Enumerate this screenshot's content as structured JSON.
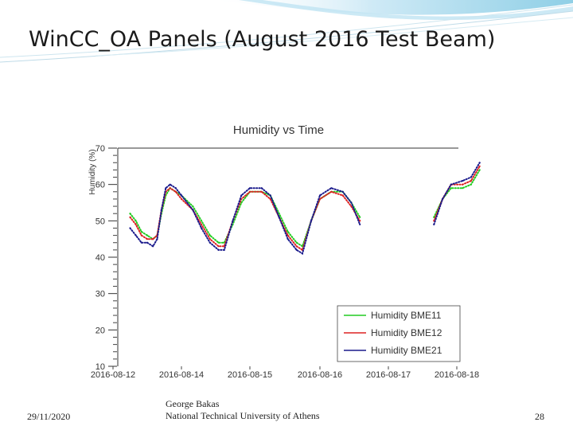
{
  "slide": {
    "title": "WinCC_OA Panels (August 2016 Test Beam)",
    "date": "29/11/2020",
    "author": "George Bakas",
    "institution": "National Technical University of Athens",
    "page_number": "28"
  },
  "chart_data": {
    "type": "line",
    "title": "Humidity vs Time",
    "xlabel": "",
    "ylabel": "Humidity (%)",
    "xticks": [
      "2016-08-12",
      "2016-08-14",
      "2016-08-15",
      "2016-08-16",
      "2016-08-17",
      "2016-08-18"
    ],
    "yticks": [
      10,
      20,
      30,
      40,
      50,
      60,
      70
    ],
    "ylim": [
      10,
      70
    ],
    "grid": false,
    "legend_position": "bottom-right",
    "series": [
      {
        "name": "Humidity BME11",
        "color": "#22cc22",
        "segments": [
          [
            [
              "2016-08-12 12:00",
              52
            ],
            [
              "2016-08-12 16:00",
              50
            ],
            [
              "2016-08-12 20:00",
              47
            ],
            [
              "2016-08-13 00:00",
              46
            ],
            [
              "2016-08-13 04:00",
              45
            ],
            [
              "2016-08-13 07:00",
              46
            ],
            [
              "2016-08-13 10:00",
              52
            ],
            [
              "2016-08-13 13:00",
              57
            ],
            [
              "2016-08-13 16:00",
              59
            ],
            [
              "2016-08-13 20:00",
              58
            ],
            [
              "2016-08-14 00:00",
              57
            ],
            [
              "2016-08-14 04:00",
              54
            ],
            [
              "2016-08-14 07:00",
              50
            ],
            [
              "2016-08-14 10:00",
              46
            ],
            [
              "2016-08-14 13:00",
              44
            ],
            [
              "2016-08-14 15:00",
              44
            ],
            [
              "2016-08-14 18:00",
              49
            ],
            [
              "2016-08-14 21:00",
              55
            ],
            [
              "2016-08-15 00:00",
              58
            ],
            [
              "2016-08-15 04:00",
              58
            ],
            [
              "2016-08-15 07:00",
              57
            ],
            [
              "2016-08-15 10:00",
              52
            ],
            [
              "2016-08-15 13:00",
              47
            ],
            [
              "2016-08-15 16:00",
              44
            ],
            [
              "2016-08-15 18:00",
              43
            ],
            [
              "2016-08-15 21:00",
              50
            ],
            [
              "2016-08-16 00:00",
              56
            ],
            [
              "2016-08-16 04:00",
              58
            ],
            [
              "2016-08-16 08:00",
              58
            ],
            [
              "2016-08-16 11:00",
              55
            ],
            [
              "2016-08-16 14:00",
              51
            ]
          ],
          [
            [
              "2016-08-17 16:00",
              51
            ],
            [
              "2016-08-17 19:00",
              56
            ],
            [
              "2016-08-17 22:00",
              59
            ],
            [
              "2016-08-18 02:00",
              59
            ],
            [
              "2016-08-18 05:00",
              60
            ],
            [
              "2016-08-18 08:00",
              64
            ]
          ]
        ]
      },
      {
        "name": "Humidity BME12",
        "color": "#dd2222",
        "segments": [
          [
            [
              "2016-08-12 12:00",
              51
            ],
            [
              "2016-08-12 16:00",
              49
            ],
            [
              "2016-08-12 20:00",
              46
            ],
            [
              "2016-08-13 00:00",
              45
            ],
            [
              "2016-08-13 04:00",
              45
            ],
            [
              "2016-08-13 07:00",
              46
            ],
            [
              "2016-08-13 10:00",
              53
            ],
            [
              "2016-08-13 13:00",
              58
            ],
            [
              "2016-08-13 16:00",
              59
            ],
            [
              "2016-08-13 20:00",
              58
            ],
            [
              "2016-08-14 00:00",
              56
            ],
            [
              "2016-08-14 04:00",
              53
            ],
            [
              "2016-08-14 07:00",
              49
            ],
            [
              "2016-08-14 10:00",
              45
            ],
            [
              "2016-08-14 13:00",
              43
            ],
            [
              "2016-08-14 15:00",
              43
            ],
            [
              "2016-08-14 18:00",
              50
            ],
            [
              "2016-08-14 21:00",
              56
            ],
            [
              "2016-08-15 00:00",
              58
            ],
            [
              "2016-08-15 04:00",
              58
            ],
            [
              "2016-08-15 07:00",
              56
            ],
            [
              "2016-08-15 10:00",
              51
            ],
            [
              "2016-08-15 13:00",
              46
            ],
            [
              "2016-08-15 16:00",
              43
            ],
            [
              "2016-08-15 18:00",
              42
            ],
            [
              "2016-08-15 21:00",
              50
            ],
            [
              "2016-08-16 00:00",
              56
            ],
            [
              "2016-08-16 04:00",
              58
            ],
            [
              "2016-08-16 08:00",
              57
            ],
            [
              "2016-08-16 11:00",
              54
            ],
            [
              "2016-08-16 14:00",
              50
            ]
          ],
          [
            [
              "2016-08-17 16:00",
              50
            ],
            [
              "2016-08-17 19:00",
              56
            ],
            [
              "2016-08-17 22:00",
              60
            ],
            [
              "2016-08-18 02:00",
              60
            ],
            [
              "2016-08-18 05:00",
              61
            ],
            [
              "2016-08-18 08:00",
              65
            ]
          ]
        ]
      },
      {
        "name": "Humidity BME21",
        "color": "#1a1a8c",
        "segments": [
          [
            [
              "2016-08-12 12:00",
              48
            ],
            [
              "2016-08-12 16:00",
              46
            ],
            [
              "2016-08-12 20:00",
              44
            ],
            [
              "2016-08-13 00:00",
              44
            ],
            [
              "2016-08-13 04:00",
              43
            ],
            [
              "2016-08-13 07:00",
              45
            ],
            [
              "2016-08-13 10:00",
              53
            ],
            [
              "2016-08-13 13:00",
              59
            ],
            [
              "2016-08-13 16:00",
              60
            ],
            [
              "2016-08-13 20:00",
              59
            ],
            [
              "2016-08-14 00:00",
              57
            ],
            [
              "2016-08-14 04:00",
              53
            ],
            [
              "2016-08-14 07:00",
              48
            ],
            [
              "2016-08-14 10:00",
              44
            ],
            [
              "2016-08-14 13:00",
              42
            ],
            [
              "2016-08-14 15:00",
              42
            ],
            [
              "2016-08-14 18:00",
              50
            ],
            [
              "2016-08-14 21:00",
              57
            ],
            [
              "2016-08-15 00:00",
              59
            ],
            [
              "2016-08-15 04:00",
              59
            ],
            [
              "2016-08-15 07:00",
              57
            ],
            [
              "2016-08-15 10:00",
              51
            ],
            [
              "2016-08-15 13:00",
              45
            ],
            [
              "2016-08-15 16:00",
              42
            ],
            [
              "2016-08-15 18:00",
              41
            ],
            [
              "2016-08-15 21:00",
              50
            ],
            [
              "2016-08-16 00:00",
              57
            ],
            [
              "2016-08-16 04:00",
              59
            ],
            [
              "2016-08-16 08:00",
              58
            ],
            [
              "2016-08-16 11:00",
              55
            ],
            [
              "2016-08-16 14:00",
              49
            ]
          ],
          [
            [
              "2016-08-17 16:00",
              49
            ],
            [
              "2016-08-17 19:00",
              56
            ],
            [
              "2016-08-17 22:00",
              60
            ],
            [
              "2016-08-18 02:00",
              61
            ],
            [
              "2016-08-18 05:00",
              62
            ],
            [
              "2016-08-18 08:00",
              66
            ]
          ]
        ]
      }
    ]
  }
}
